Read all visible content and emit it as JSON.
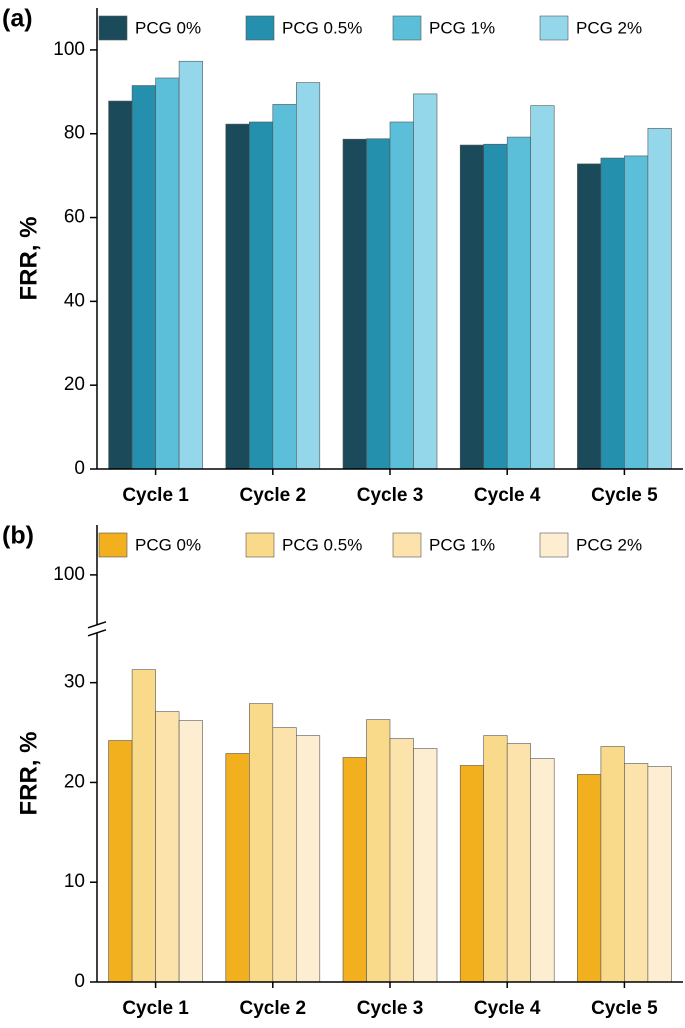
{
  "chart_data": [
    {
      "type": "bar",
      "panel": "(a)",
      "y_label": "FRR, %",
      "categories": [
        "Cycle 1",
        "Cycle 2",
        "Cycle 3",
        "Cycle 4",
        "Cycle 5"
      ],
      "series": [
        {
          "name": "PCG 0%",
          "color": "#1b4b5a",
          "values": [
            87.8,
            82.3,
            78.7,
            77.3,
            72.8
          ]
        },
        {
          "name": "PCG 0.5%",
          "color": "#2590ad",
          "values": [
            91.5,
            82.8,
            78.8,
            77.5,
            74.2
          ]
        },
        {
          "name": "PCG 1%",
          "color": "#5bbfda",
          "values": [
            93.3,
            87.0,
            82.8,
            79.2,
            74.7
          ]
        },
        {
          "name": "PCG 2%",
          "color": "#94d6ea",
          "values": [
            97.3,
            92.2,
            89.5,
            86.7,
            81.3
          ]
        }
      ],
      "ylim": [
        0,
        110
      ],
      "yticks": [
        0,
        20,
        40,
        60,
        80,
        100
      ]
    },
    {
      "type": "bar",
      "panel": "(b)",
      "y_label": "FRR, %",
      "categories": [
        "Cycle 1",
        "Cycle 2",
        "Cycle 3",
        "Cycle 4",
        "Cycle 5"
      ],
      "series": [
        {
          "name": "PCG 0%",
          "color": "#f2b01e",
          "values": [
            24.2,
            22.9,
            22.5,
            21.7,
            20.8
          ]
        },
        {
          "name": "PCG 0.5%",
          "color": "#f9d98a",
          "values": [
            31.3,
            27.9,
            26.3,
            24.7,
            23.6
          ]
        },
        {
          "name": "PCG 1%",
          "color": "#fbe3ab",
          "values": [
            27.1,
            25.5,
            24.4,
            23.9,
            21.9
          ]
        },
        {
          "name": "PCG 2%",
          "color": "#fdeed2",
          "values": [
            26.2,
            24.7,
            23.4,
            22.4,
            21.6
          ]
        }
      ],
      "ylim": [
        0,
        105
      ],
      "y_break": [
        35,
        95
      ],
      "yticks": [
        0,
        10,
        20,
        30,
        100
      ]
    }
  ]
}
